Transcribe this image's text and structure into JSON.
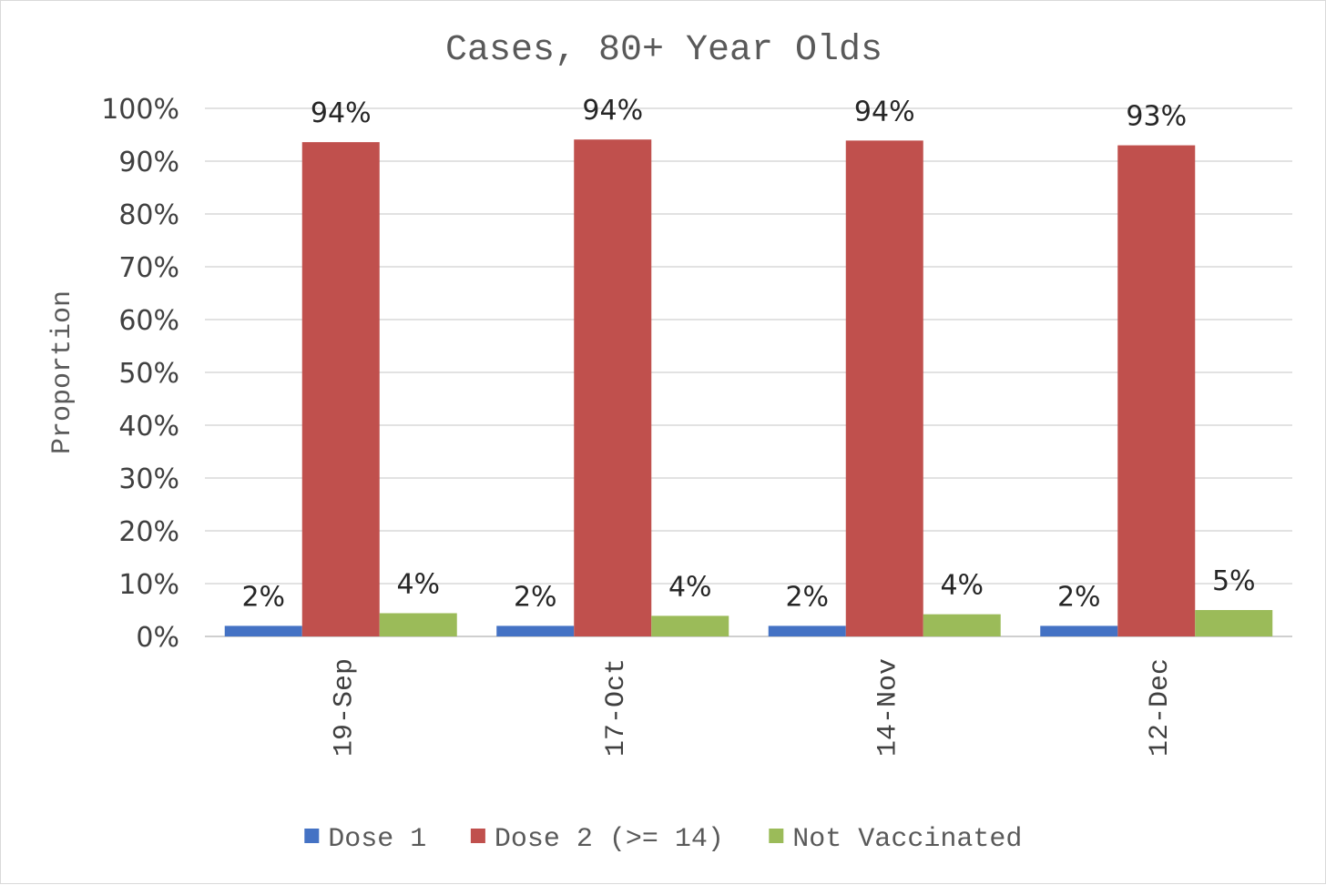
{
  "chart_data": {
    "type": "bar",
    "title": "Cases, 80+ Year Olds",
    "ylabel": "Proportion",
    "xlabel": "",
    "categories": [
      "19-Sep",
      "17-Oct",
      "14-Nov",
      "12-Dec"
    ],
    "series": [
      {
        "name": "Dose 1",
        "color": "#4472c4",
        "values": [
          2,
          2,
          2,
          2
        ],
        "labels": [
          "2%",
          "2%",
          "2%",
          "2%"
        ]
      },
      {
        "name": "Dose 2 (>= 14)",
        "color": "#c0504d",
        "values": [
          93.6,
          94.1,
          93.9,
          93
        ],
        "labels": [
          "94%",
          "94%",
          "94%",
          "93%"
        ]
      },
      {
        "name": "Not Vaccinated",
        "color": "#9bbb59",
        "values": [
          4.4,
          3.9,
          4.2,
          5
        ],
        "labels": [
          "4%",
          "4%",
          "4%",
          "5%"
        ]
      }
    ],
    "yticks": [
      "0%",
      "10%",
      "20%",
      "30%",
      "40%",
      "50%",
      "60%",
      "70%",
      "80%",
      "90%",
      "100%"
    ],
    "ylim": [
      0,
      100
    ],
    "grid": true,
    "legend_position": "bottom"
  }
}
